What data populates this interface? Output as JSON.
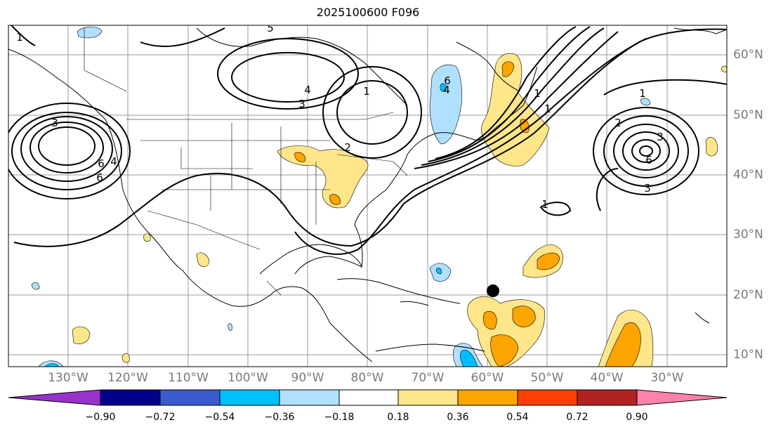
{
  "title": "2025100600 F096",
  "longitude_labels": [
    "130°W",
    "120°W",
    "110°W",
    "100°W",
    "90°W",
    "80°W",
    "70°W",
    "60°W",
    "50°W",
    "40°W",
    "30°W"
  ],
  "latitude_labels": [
    "60°N",
    "50°N",
    "40°N",
    "30°N",
    "20°N",
    "10°N"
  ],
  "colorbar": {
    "ticks": [
      "−0.90",
      "−0.72",
      "−0.54",
      "−0.36",
      "−0.18",
      "0.18",
      "0.36",
      "0.54",
      "0.72",
      "0.90"
    ],
    "colors": [
      "#9932cc",
      "#00008b",
      "#3a5bd0",
      "#00bfff",
      "#b0e0ff",
      "#ffffff",
      "#ffe68a",
      "#ffa500",
      "#ff4000",
      "#b22222",
      "#ff82aa"
    ]
  },
  "contour_labels": [
    "1",
    "3",
    "4",
    "5",
    "6",
    "1",
    "3",
    "4",
    "1",
    "2",
    "4",
    "6",
    "1",
    "3",
    "6",
    "1",
    "2",
    "3",
    "6",
    "1"
  ],
  "marker": {
    "lon": -59.8,
    "lat": 20.5,
    "color": "#000000"
  }
}
